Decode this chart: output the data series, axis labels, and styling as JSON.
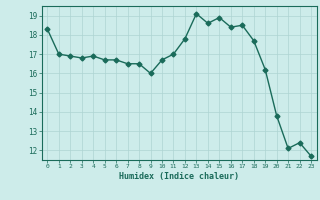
{
  "xlabel": "Humidex (Indice chaleur)",
  "x": [
    0,
    1,
    2,
    3,
    4,
    5,
    6,
    7,
    8,
    9,
    10,
    11,
    12,
    13,
    14,
    15,
    16,
    17,
    18,
    19,
    20,
    21,
    22,
    23
  ],
  "y": [
    18.3,
    17.0,
    16.9,
    16.8,
    16.9,
    16.7,
    16.7,
    16.5,
    16.5,
    16.0,
    16.7,
    17.0,
    17.8,
    19.1,
    18.6,
    18.9,
    18.4,
    18.5,
    17.7,
    16.2,
    13.8,
    12.1,
    12.4,
    11.7
  ],
  "line_color": "#1a6b5a",
  "marker": "D",
  "marker_size": 2.5,
  "bg_color": "#cdecea",
  "grid_color": "#aed4d2",
  "tick_color": "#1a6b5a",
  "label_color": "#1a6b5a",
  "ylim": [
    11.5,
    19.5
  ],
  "yticks": [
    12,
    13,
    14,
    15,
    16,
    17,
    18,
    19
  ],
  "xticks": [
    0,
    1,
    2,
    3,
    4,
    5,
    6,
    7,
    8,
    9,
    10,
    11,
    12,
    13,
    14,
    15,
    16,
    17,
    18,
    19,
    20,
    21,
    22,
    23
  ]
}
